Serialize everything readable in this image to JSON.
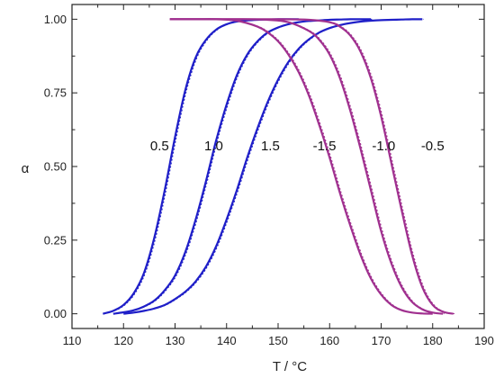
{
  "chart_data": {
    "type": "line",
    "xlabel": "T / °C",
    "ylabel": "α",
    "xlim": [
      110,
      190
    ],
    "ylim": [
      -0.05,
      1.05
    ],
    "x_ticks": [
      "110",
      "120",
      "130",
      "140",
      "150",
      "160",
      "170",
      "180",
      "190"
    ],
    "y_ticks": [
      "0.00",
      "0.25",
      "0.50",
      "0.75",
      "1.00"
    ],
    "grid": false,
    "colors": {
      "heating": "#1f1fc8",
      "cooling": "#a0308f"
    },
    "series": [
      {
        "label": "0.5",
        "direction": "heating",
        "x": [
          116,
          118,
          120,
          122,
          124,
          126,
          128,
          130,
          132,
          134,
          136,
          138,
          140,
          142,
          144,
          146,
          148,
          150,
          152,
          154
        ],
        "y": [
          0.0,
          0.01,
          0.03,
          0.07,
          0.14,
          0.26,
          0.42,
          0.6,
          0.76,
          0.87,
          0.93,
          0.965,
          0.983,
          0.992,
          0.996,
          0.998,
          0.999,
          1.0,
          1.0,
          1.0
        ]
      },
      {
        "label": "1.0",
        "direction": "heating",
        "x": [
          118,
          120,
          122,
          124,
          126,
          128,
          130,
          132,
          134,
          136,
          138,
          140,
          142,
          144,
          146,
          148,
          150,
          152,
          154,
          156,
          158,
          160,
          162,
          164,
          166,
          168
        ],
        "y": [
          0.0,
          0.005,
          0.012,
          0.025,
          0.045,
          0.08,
          0.13,
          0.21,
          0.32,
          0.45,
          0.59,
          0.71,
          0.81,
          0.88,
          0.925,
          0.955,
          0.972,
          0.983,
          0.99,
          0.994,
          0.996,
          0.998,
          0.999,
          1.0,
          1.0,
          1.0
        ]
      },
      {
        "label": "1.5",
        "direction": "heating",
        "x": [
          120,
          122,
          124,
          126,
          128,
          130,
          132,
          134,
          136,
          138,
          140,
          142,
          144,
          146,
          148,
          150,
          152,
          154,
          156,
          158,
          160,
          162,
          164,
          166,
          168,
          170,
          172,
          174,
          176,
          178
        ],
        "y": [
          0.0,
          0.004,
          0.01,
          0.018,
          0.03,
          0.05,
          0.075,
          0.11,
          0.16,
          0.23,
          0.32,
          0.42,
          0.53,
          0.63,
          0.72,
          0.795,
          0.855,
          0.9,
          0.932,
          0.955,
          0.97,
          0.98,
          0.987,
          0.992,
          0.995,
          0.997,
          0.998,
          0.999,
          1.0,
          1.0
        ]
      },
      {
        "label": "-1.5",
        "direction": "cooling",
        "x": [
          129,
          134,
          138,
          142,
          146,
          148,
          150,
          152,
          154,
          156,
          158,
          160,
          162,
          164,
          166,
          168,
          170,
          172,
          174,
          176,
          178,
          180
        ],
        "y": [
          1.0,
          1.0,
          1.0,
          0.995,
          0.975,
          0.955,
          0.925,
          0.88,
          0.82,
          0.74,
          0.64,
          0.53,
          0.41,
          0.3,
          0.2,
          0.12,
          0.065,
          0.03,
          0.012,
          0.004,
          0.001,
          0.0
        ]
      },
      {
        "label": "-1.0",
        "direction": "cooling",
        "x": [
          129,
          136,
          142,
          148,
          152,
          156,
          158,
          160,
          162,
          164,
          166,
          168,
          170,
          172,
          174,
          176,
          178,
          180,
          182
        ],
        "y": [
          1.0,
          1.0,
          1.0,
          0.998,
          0.99,
          0.96,
          0.93,
          0.88,
          0.8,
          0.69,
          0.56,
          0.42,
          0.28,
          0.17,
          0.09,
          0.04,
          0.015,
          0.004,
          0.0
        ]
      },
      {
        "label": "-0.5",
        "direction": "cooling",
        "x": [
          129,
          140,
          150,
          156,
          160,
          162,
          164,
          166,
          168,
          170,
          172,
          174,
          176,
          178,
          180,
          182,
          184
        ],
        "y": [
          1.0,
          1.0,
          1.0,
          0.998,
          0.99,
          0.975,
          0.945,
          0.89,
          0.8,
          0.67,
          0.51,
          0.35,
          0.2,
          0.09,
          0.03,
          0.007,
          0.0
        ]
      }
    ]
  }
}
